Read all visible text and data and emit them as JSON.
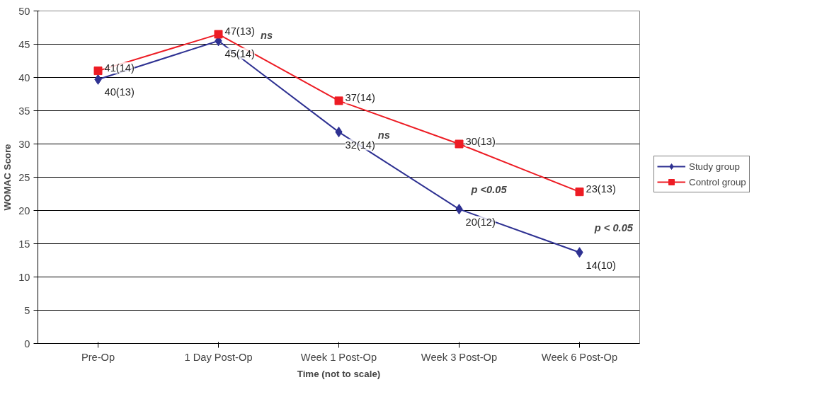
{
  "chart_data": {
    "type": "line",
    "xlabel": "Time (not to scale)",
    "ylabel": "WOMAC Score",
    "categories": [
      "Pre-Op",
      "1 Day Post-Op",
      "Week 1 Post-Op",
      "Week 3 Post-Op",
      "Week 6 Post-Op"
    ],
    "series": [
      {
        "name": "Study group",
        "color": "#2e3192",
        "marker": "diamond",
        "values": [
          39.7,
          45.5,
          31.8,
          20.2,
          13.7
        ],
        "value_labels": [
          "40(13)",
          "45(14)",
          "32(14)",
          "20(12)",
          "14(10)"
        ]
      },
      {
        "name": "Control group",
        "color": "#ed1c24",
        "marker": "square",
        "values": [
          41,
          46.5,
          36.5,
          30,
          22.8
        ],
        "value_labels": [
          "41(14)",
          "47(13)",
          "37(14)",
          "30(13)",
          "23(13)"
        ]
      }
    ],
    "ylim": [
      0,
      50
    ],
    "yticks": [
      0,
      5,
      10,
      15,
      20,
      25,
      30,
      35,
      40,
      45,
      50
    ],
    "grid": "y",
    "legend": "right",
    "annotations": [
      "ns",
      "ns",
      "p <0.05",
      "p < 0.05"
    ]
  }
}
